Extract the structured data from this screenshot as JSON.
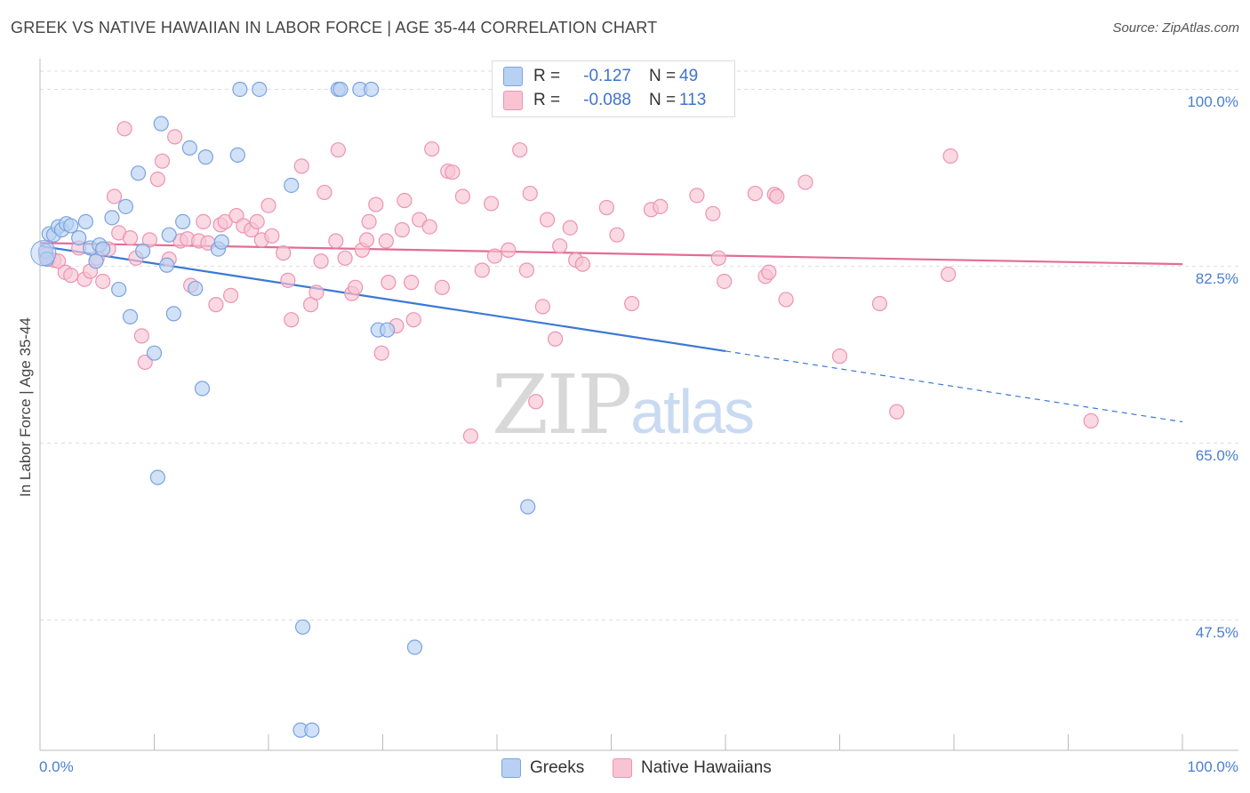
{
  "header": {
    "title": "GREEK VS NATIVE HAWAIIAN IN LABOR FORCE | AGE 35-44 CORRELATION CHART",
    "source": "Source: ZipAtlas.com"
  },
  "watermark": {
    "zip": "ZIP",
    "atlas": "atlas"
  },
  "legend": {
    "r_label": "R =",
    "n_label": "N =",
    "rows": [
      {
        "r": "-0.127",
        "n": "49",
        "swatch_fill": "#b8d1f3",
        "swatch_stroke": "#7aa3e0"
      },
      {
        "r": "-0.088",
        "n": "113",
        "swatch_fill": "#f8c4d4",
        "swatch_stroke": "#ee93b1"
      }
    ]
  },
  "bottom_legend": {
    "greeks": "Greeks",
    "hawaiians": "Native Hawaiians"
  },
  "axes": {
    "ylabel": "In Labor Force | Age 35-44",
    "x_min_label": "0.0%",
    "x_max_label": "100.0%",
    "y_ticks": [
      {
        "value": 100.0,
        "label": "100.0%"
      },
      {
        "value": 82.5,
        "label": "82.5%"
      },
      {
        "value": 65.0,
        "label": "65.0%"
      },
      {
        "value": 47.5,
        "label": "47.5%"
      }
    ]
  },
  "chart_data": {
    "type": "scatter",
    "title": "GREEK VS NATIVE HAWAIIAN IN LABOR FORCE | AGE 35-44 CORRELATION CHART",
    "xlabel": "",
    "ylabel": "In Labor Force | Age 35-44",
    "xlim": [
      0,
      100
    ],
    "ylim": [
      34.6,
      101.8
    ],
    "grid": true,
    "colors": {
      "greeks": "#7aa3e0",
      "greeks_fill": "#b8d1f3",
      "greeks_line": "#3b78d4",
      "hawaiians": "#ee93b1",
      "hawaiians_fill": "#f8c4d4",
      "hawaiians_line": "#e36c96"
    },
    "series": [
      {
        "name": "Greeks",
        "r": -0.127,
        "n": 49,
        "trend": {
          "x0": 0,
          "y0": 84.5,
          "x1": 60,
          "y1": 74.1,
          "dash_x1": 100,
          "dash_y1": 67.1
        },
        "points": [
          [
            0.5,
            84.0
          ],
          [
            0.6,
            83.2
          ],
          [
            0.8,
            85.7
          ],
          [
            1.2,
            85.6
          ],
          [
            1.6,
            86.4
          ],
          [
            1.9,
            86.1
          ],
          [
            2.3,
            86.7
          ],
          [
            2.7,
            86.5
          ],
          [
            3.4,
            85.3
          ],
          [
            4.0,
            86.9
          ],
          [
            4.4,
            84.3
          ],
          [
            4.9,
            83.0
          ],
          [
            5.2,
            84.6
          ],
          [
            5.5,
            84.2
          ],
          [
            6.3,
            87.3
          ],
          [
            6.9,
            80.2
          ],
          [
            7.5,
            88.4
          ],
          [
            7.9,
            77.5
          ],
          [
            8.6,
            91.7
          ],
          [
            9.0,
            84.0
          ],
          [
            10.0,
            73.9
          ],
          [
            10.3,
            61.6
          ],
          [
            10.6,
            96.6
          ],
          [
            11.1,
            82.6
          ],
          [
            11.3,
            85.6
          ],
          [
            11.7,
            77.8
          ],
          [
            12.5,
            86.9
          ],
          [
            13.1,
            94.2
          ],
          [
            13.6,
            80.3
          ],
          [
            14.2,
            70.4
          ],
          [
            14.5,
            93.3
          ],
          [
            15.6,
            84.2
          ],
          [
            15.9,
            84.9
          ],
          [
            17.3,
            93.5
          ],
          [
            17.5,
            100.0
          ],
          [
            19.2,
            100.0
          ],
          [
            22.0,
            90.5
          ],
          [
            22.8,
            36.6
          ],
          [
            23.0,
            46.8
          ],
          [
            23.8,
            36.6
          ],
          [
            26.1,
            100.0
          ],
          [
            26.3,
            100.0
          ],
          [
            28.0,
            100.0
          ],
          [
            29.0,
            100.0
          ],
          [
            29.6,
            76.2
          ],
          [
            30.4,
            76.2
          ],
          [
            32.8,
            44.8
          ],
          [
            41.6,
            100.0
          ],
          [
            42.7,
            58.7
          ]
        ]
      },
      {
        "name": "Native Hawaiians",
        "r": -0.088,
        "n": 113,
        "trend": {
          "x0": 0,
          "y0": 84.8,
          "x1": 100,
          "y1": 82.7
        },
        "points": [
          [
            0.5,
            83.6
          ],
          [
            0.8,
            83.2
          ],
          [
            1.2,
            83.1
          ],
          [
            1.6,
            83.0
          ],
          [
            2.2,
            81.9
          ],
          [
            2.7,
            81.6
          ],
          [
            3.4,
            84.3
          ],
          [
            3.9,
            81.2
          ],
          [
            4.4,
            82.0
          ],
          [
            5.0,
            83.3
          ],
          [
            5.5,
            81.0
          ],
          [
            6.0,
            84.2
          ],
          [
            6.5,
            89.4
          ],
          [
            6.9,
            85.8
          ],
          [
            7.4,
            96.1
          ],
          [
            7.9,
            85.3
          ],
          [
            8.4,
            83.3
          ],
          [
            8.9,
            75.6
          ],
          [
            9.2,
            73.0
          ],
          [
            9.6,
            85.1
          ],
          [
            10.3,
            91.1
          ],
          [
            10.7,
            92.9
          ],
          [
            11.3,
            83.2
          ],
          [
            11.8,
            95.3
          ],
          [
            12.3,
            85.0
          ],
          [
            12.9,
            85.2
          ],
          [
            13.2,
            80.6
          ],
          [
            13.9,
            85.0
          ],
          [
            14.3,
            86.9
          ],
          [
            14.7,
            84.8
          ],
          [
            15.4,
            78.7
          ],
          [
            15.8,
            86.6
          ],
          [
            16.2,
            86.9
          ],
          [
            16.7,
            79.6
          ],
          [
            17.2,
            87.5
          ],
          [
            17.8,
            86.5
          ],
          [
            18.5,
            86.1
          ],
          [
            19.0,
            86.9
          ],
          [
            19.4,
            85.1
          ],
          [
            20.0,
            88.5
          ],
          [
            20.3,
            85.5
          ],
          [
            21.3,
            83.8
          ],
          [
            21.7,
            81.1
          ],
          [
            22.0,
            77.2
          ],
          [
            22.9,
            92.4
          ],
          [
            23.7,
            78.7
          ],
          [
            24.2,
            79.9
          ],
          [
            24.6,
            83.0
          ],
          [
            24.9,
            89.8
          ],
          [
            25.9,
            85.0
          ],
          [
            26.1,
            94.0
          ],
          [
            26.7,
            83.3
          ],
          [
            27.3,
            79.8
          ],
          [
            27.6,
            80.4
          ],
          [
            28.2,
            84.1
          ],
          [
            28.6,
            85.1
          ],
          [
            28.8,
            86.9
          ],
          [
            29.4,
            88.6
          ],
          [
            29.9,
            73.9
          ],
          [
            30.3,
            85.0
          ],
          [
            30.5,
            80.9
          ],
          [
            31.2,
            76.6
          ],
          [
            31.7,
            86.1
          ],
          [
            31.9,
            89.0
          ],
          [
            32.5,
            80.9
          ],
          [
            32.7,
            77.2
          ],
          [
            33.2,
            87.1
          ],
          [
            34.1,
            86.4
          ],
          [
            34.3,
            94.1
          ],
          [
            35.2,
            80.4
          ],
          [
            35.7,
            91.9
          ],
          [
            36.1,
            91.8
          ],
          [
            37.0,
            89.4
          ],
          [
            37.7,
            65.7
          ],
          [
            38.7,
            82.1
          ],
          [
            39.5,
            88.7
          ],
          [
            39.8,
            83.5
          ],
          [
            41.0,
            84.1
          ],
          [
            42.0,
            94.0
          ],
          [
            42.6,
            82.1
          ],
          [
            42.9,
            89.7
          ],
          [
            43.4,
            69.1
          ],
          [
            44.0,
            78.5
          ],
          [
            44.4,
            87.1
          ],
          [
            45.1,
            75.3
          ],
          [
            45.5,
            84.5
          ],
          [
            46.4,
            86.3
          ],
          [
            46.9,
            83.1
          ],
          [
            47.5,
            82.7
          ],
          [
            49.6,
            88.3
          ],
          [
            50.5,
            85.6
          ],
          [
            51.8,
            78.8
          ],
          [
            53.5,
            88.1
          ],
          [
            54.3,
            88.4
          ],
          [
            57.5,
            89.5
          ],
          [
            58.9,
            87.7
          ],
          [
            59.4,
            83.3
          ],
          [
            59.9,
            81.0
          ],
          [
            60.0,
            100.0
          ],
          [
            62.6,
            89.7
          ],
          [
            63.5,
            81.5
          ],
          [
            63.8,
            81.9
          ],
          [
            64.3,
            89.6
          ],
          [
            64.5,
            89.4
          ],
          [
            65.3,
            79.2
          ],
          [
            67.0,
            90.8
          ],
          [
            70.0,
            73.6
          ],
          [
            73.5,
            78.8
          ],
          [
            75.0,
            68.1
          ],
          [
            79.5,
            81.7
          ],
          [
            79.7,
            93.4
          ],
          [
            92.0,
            67.2
          ]
        ]
      }
    ]
  }
}
